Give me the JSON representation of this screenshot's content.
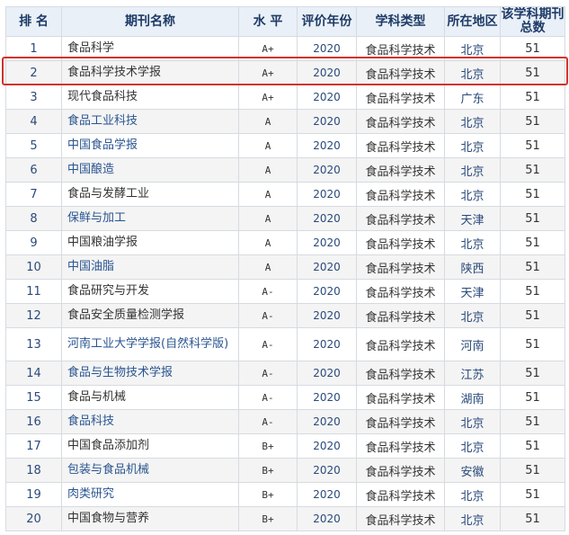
{
  "headers": [
    "排 名",
    "期刊名称",
    "水 平",
    "评价年份",
    "学科类型",
    "所在地区",
    "该学科期刊总数"
  ],
  "highlight_color": "#d2322d",
  "rows": [
    {
      "rank": "1",
      "name": "食品科学",
      "level": "A+",
      "year": "2020",
      "type": "食品科学技术",
      "region": "北京",
      "total": "51",
      "link": false
    },
    {
      "rank": "2",
      "name": "食品科学技术学报",
      "level": "A+",
      "year": "2020",
      "type": "食品科学技术",
      "region": "北京",
      "total": "51",
      "link": false
    },
    {
      "rank": "3",
      "name": "现代食品科技",
      "level": "A+",
      "year": "2020",
      "type": "食品科学技术",
      "region": "广东",
      "total": "51",
      "link": false
    },
    {
      "rank": "4",
      "name": "食品工业科技",
      "level": "A",
      "year": "2020",
      "type": "食品科学技术",
      "region": "北京",
      "total": "51",
      "link": true
    },
    {
      "rank": "5",
      "name": "中国食品学报",
      "level": "A",
      "year": "2020",
      "type": "食品科学技术",
      "region": "北京",
      "total": "51",
      "link": true
    },
    {
      "rank": "6",
      "name": "中国酿造",
      "level": "A",
      "year": "2020",
      "type": "食品科学技术",
      "region": "北京",
      "total": "51",
      "link": true
    },
    {
      "rank": "7",
      "name": "食品与发酵工业",
      "level": "A",
      "year": "2020",
      "type": "食品科学技术",
      "region": "北京",
      "total": "51",
      "link": false
    },
    {
      "rank": "8",
      "name": "保鲜与加工",
      "level": "A",
      "year": "2020",
      "type": "食品科学技术",
      "region": "天津",
      "total": "51",
      "link": true
    },
    {
      "rank": "9",
      "name": "中国粮油学报",
      "level": "A",
      "year": "2020",
      "type": "食品科学技术",
      "region": "北京",
      "total": "51",
      "link": false
    },
    {
      "rank": "10",
      "name": "中国油脂",
      "level": "A",
      "year": "2020",
      "type": "食品科学技术",
      "region": "陕西",
      "total": "51",
      "link": true
    },
    {
      "rank": "11",
      "name": "食品研究与开发",
      "level": "A-",
      "year": "2020",
      "type": "食品科学技术",
      "region": "天津",
      "total": "51",
      "link": false
    },
    {
      "rank": "12",
      "name": "食品安全质量检测学报",
      "level": "A-",
      "year": "2020",
      "type": "食品科学技术",
      "region": "北京",
      "total": "51",
      "link": false
    },
    {
      "rank": "13",
      "name": "河南工业大学学报(自然科学版)",
      "level": "A-",
      "year": "2020",
      "type": "食品科学技术",
      "region": "河南",
      "total": "51",
      "link": true
    },
    {
      "rank": "14",
      "name": "食品与生物技术学报",
      "level": "A-",
      "year": "2020",
      "type": "食品科学技术",
      "region": "江苏",
      "total": "51",
      "link": true
    },
    {
      "rank": "15",
      "name": "食品与机械",
      "level": "A-",
      "year": "2020",
      "type": "食品科学技术",
      "region": "湖南",
      "total": "51",
      "link": false
    },
    {
      "rank": "16",
      "name": "食品科技",
      "level": "A-",
      "year": "2020",
      "type": "食品科学技术",
      "region": "北京",
      "total": "51",
      "link": true
    },
    {
      "rank": "17",
      "name": "中国食品添加剂",
      "level": "B+",
      "year": "2020",
      "type": "食品科学技术",
      "region": "北京",
      "total": "51",
      "link": false
    },
    {
      "rank": "18",
      "name": "包装与食品机械",
      "level": "B+",
      "year": "2020",
      "type": "食品科学技术",
      "region": "安徽",
      "total": "51",
      "link": true
    },
    {
      "rank": "19",
      "name": "肉类研究",
      "level": "B+",
      "year": "2020",
      "type": "食品科学技术",
      "region": "北京",
      "total": "51",
      "link": true
    },
    {
      "rank": "20",
      "name": "中国食物与营养",
      "level": "B+",
      "year": "2020",
      "type": "食品科学技术",
      "region": "北京",
      "total": "51",
      "link": false
    }
  ]
}
